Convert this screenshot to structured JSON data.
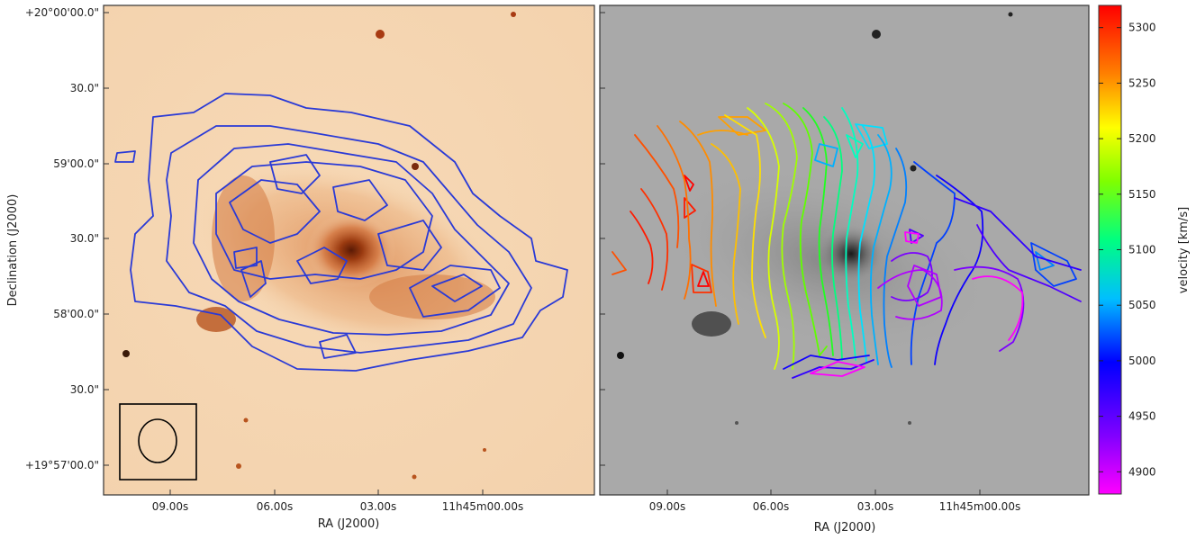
{
  "chart_data": [
    {
      "type": "contour",
      "panel": "left",
      "background": "optical image (orange colormap)",
      "xlabel": "RA (J2000)",
      "ylabel": "Declination (J2000)",
      "x_ticks": [
        "09.00s",
        "06.00s",
        "03.00s",
        "11h45m00.00s"
      ],
      "y_ticks": [
        "+20°00'00.0\"",
        "30.0\"",
        "59'00.0\"",
        "30.0\"",
        "58'00.0\"",
        "30.0\"",
        "+19°57'00.0\""
      ],
      "contour_color": "#2a3ad6",
      "beam_shown": true
    },
    {
      "type": "contour",
      "panel": "right",
      "background": "optical image (grayscale)",
      "xlabel": "RA (J2000)",
      "x_ticks": [
        "09.00s",
        "06.00s",
        "03.00s",
        "11h45m00.00s"
      ],
      "colorbar": {
        "label": "velocity [km/s]",
        "ticks": [
          5300,
          5250,
          5200,
          5150,
          5100,
          5050,
          5000,
          4950,
          4900
        ],
        "range": [
          4880,
          5320
        ],
        "colormap": "gist_rainbow"
      }
    }
  ]
}
